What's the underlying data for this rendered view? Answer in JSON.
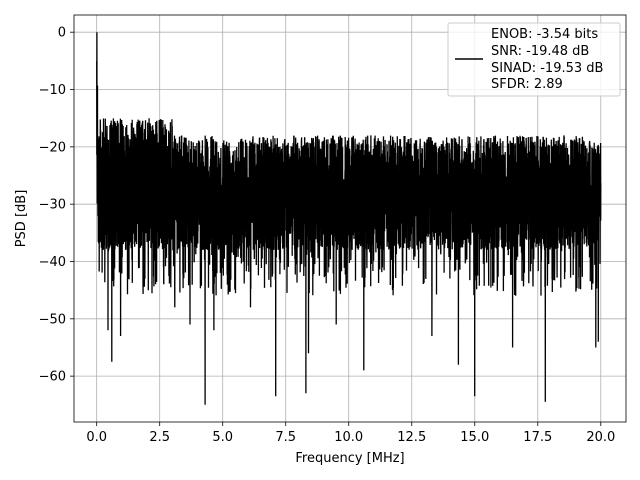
{
  "chart_data": {
    "type": "line",
    "title": "",
    "xlabel": "Frequency [MHz]",
    "ylabel": "PSD [dB]",
    "xlim": [
      -0.9,
      21.0
    ],
    "ylim": [
      -68.0,
      3.0
    ],
    "xticks": [
      0.0,
      2.5,
      5.0,
      7.5,
      10.0,
      12.5,
      15.0,
      17.5,
      20.0
    ],
    "xtick_labels": [
      "0.0",
      "2.5",
      "5.0",
      "7.5",
      "10.0",
      "12.5",
      "15.0",
      "17.5",
      "20.0"
    ],
    "yticks": [
      0,
      -10,
      -20,
      -30,
      -40,
      -50,
      -60
    ],
    "ytick_labels": [
      "0",
      "−10",
      "−20",
      "−30",
      "−40",
      "−50",
      "−60"
    ],
    "grid": true,
    "legend_position": "top-right",
    "legend_lines": [
      "ENOB: -3.54 bits",
      "SNR: -19.48 dB",
      "SINAD: -19.53 dB",
      "SFDR: 2.89"
    ],
    "series_color": "#000000",
    "noise_floor": {
      "f_start": 0.0,
      "f_end": 20.0,
      "peak_db": 0.0,
      "typical_upper_db": -18,
      "typical_lower_db": -37,
      "dips": [
        [
          0.45,
          -52
        ],
        [
          0.6,
          -57.5
        ],
        [
          0.95,
          -53
        ],
        [
          2.05,
          -45
        ],
        [
          3.1,
          -48
        ],
        [
          3.7,
          -51
        ],
        [
          4.3,
          -65
        ],
        [
          4.65,
          -52
        ],
        [
          6.1,
          -48
        ],
        [
          7.1,
          -63.5
        ],
        [
          8.3,
          -63
        ],
        [
          8.4,
          -56
        ],
        [
          9.5,
          -51
        ],
        [
          10.6,
          -59
        ],
        [
          13.3,
          -53
        ],
        [
          14.35,
          -58
        ],
        [
          15.0,
          -63.5
        ],
        [
          16.5,
          -55
        ],
        [
          17.8,
          -64.5
        ],
        [
          19.8,
          -55
        ],
        [
          19.9,
          -54
        ]
      ]
    }
  }
}
